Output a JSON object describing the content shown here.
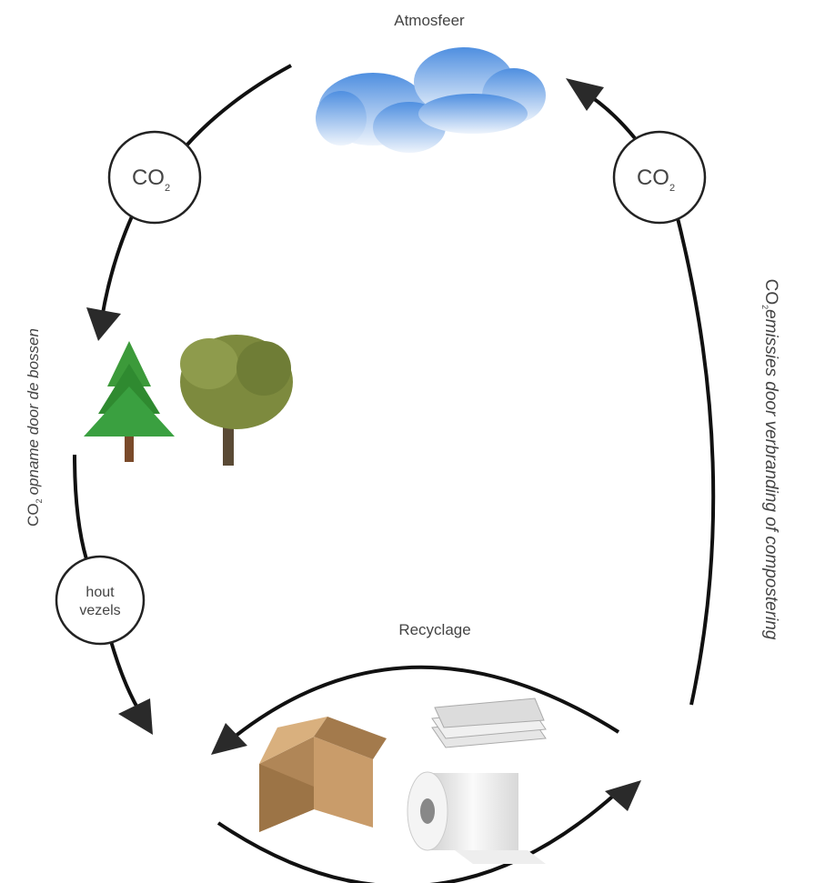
{
  "labels": {
    "atmosphere": "Atmosfeer",
    "recycling": "Recyclage"
  },
  "circles": [
    {
      "main": "CO",
      "sub": "2"
    },
    {
      "main": "CO",
      "sub": "2"
    },
    {
      "lines": [
        "hout",
        "vezels"
      ]
    }
  ],
  "side_labels": {
    "left": {
      "main": "CO",
      "sub": "2",
      "rest": "opname door de bossen"
    },
    "right": {
      "main": "CO",
      "sub": "2",
      "rest": "emissies door verbranding of compostering"
    }
  }
}
